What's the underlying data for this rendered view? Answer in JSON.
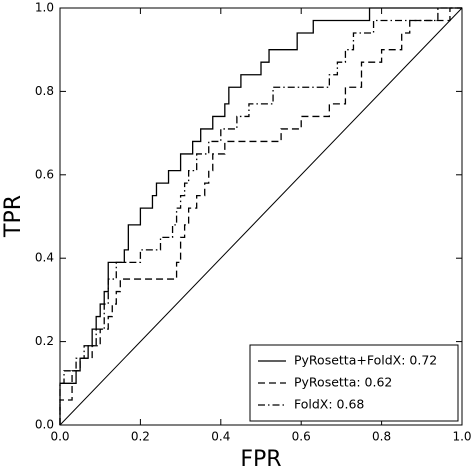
{
  "chart_data": {
    "type": "line",
    "xlabel": "FPR",
    "ylabel": "TPR",
    "xlim": [
      0,
      1
    ],
    "ylim": [
      0,
      1
    ],
    "xticks": [
      {
        "value": 0,
        "label": "0.0"
      },
      0.2,
      0.4,
      0.6,
      0.8,
      {
        "value": 1,
        "label": "1.0"
      }
    ],
    "yticks": [
      {
        "value": 0,
        "label": "0.0"
      },
      0.2,
      0.4,
      0.6,
      0.8,
      {
        "value": 1,
        "label": "1.0"
      }
    ],
    "diagonal": true,
    "grid": false,
    "legend": "lower right",
    "series": [
      {
        "name": "PyRosetta+FoldX: 0.72",
        "color": "#000000",
        "dash": "solid",
        "x": [
          0,
          0,
          0.04,
          0.04,
          0.05,
          0.05,
          0.07,
          0.07,
          0.08,
          0.08,
          0.09,
          0.09,
          0.1,
          0.1,
          0.11,
          0.11,
          0.12,
          0.12,
          0.16,
          0.16,
          0.17,
          0.17,
          0.2,
          0.2,
          0.23,
          0.23,
          0.24,
          0.24,
          0.27,
          0.27,
          0.3,
          0.3,
          0.33,
          0.33,
          0.35,
          0.35,
          0.38,
          0.38,
          0.41,
          0.41,
          0.42,
          0.42,
          0.45,
          0.45,
          0.5,
          0.5,
          0.52,
          0.52,
          0.59,
          0.59,
          0.63,
          0.63,
          0.77,
          0.77,
          1
        ],
        "values": [
          0,
          0.1,
          0.1,
          0.13,
          0.13,
          0.16,
          0.16,
          0.19,
          0.19,
          0.23,
          0.23,
          0.26,
          0.26,
          0.29,
          0.29,
          0.32,
          0.32,
          0.39,
          0.39,
          0.42,
          0.42,
          0.48,
          0.48,
          0.52,
          0.52,
          0.55,
          0.55,
          0.58,
          0.58,
          0.61,
          0.61,
          0.65,
          0.65,
          0.68,
          0.68,
          0.71,
          0.71,
          0.74,
          0.74,
          0.77,
          0.77,
          0.81,
          0.81,
          0.84,
          0.84,
          0.87,
          0.87,
          0.9,
          0.9,
          0.94,
          0.94,
          0.97,
          0.97,
          1,
          1
        ]
      },
      {
        "name": "PyRosetta: 0.62",
        "color": "#000000",
        "dash": "dashed",
        "x": [
          0,
          0,
          0.03,
          0.03,
          0.05,
          0.05,
          0.08,
          0.08,
          0.1,
          0.1,
          0.12,
          0.12,
          0.13,
          0.13,
          0.14,
          0.14,
          0.15,
          0.15,
          0.29,
          0.29,
          0.3,
          0.3,
          0.31,
          0.31,
          0.32,
          0.32,
          0.34,
          0.34,
          0.36,
          0.36,
          0.37,
          0.37,
          0.38,
          0.38,
          0.41,
          0.41,
          0.55,
          0.55,
          0.6,
          0.6,
          0.67,
          0.67,
          0.71,
          0.71,
          0.75,
          0.75,
          0.8,
          0.8,
          0.85,
          0.85,
          0.87,
          0.87,
          0.97,
          0.97,
          1
        ],
        "values": [
          0,
          0.06,
          0.06,
          0.13,
          0.13,
          0.16,
          0.16,
          0.19,
          0.19,
          0.23,
          0.23,
          0.26,
          0.26,
          0.29,
          0.29,
          0.32,
          0.32,
          0.35,
          0.35,
          0.39,
          0.39,
          0.45,
          0.45,
          0.48,
          0.48,
          0.52,
          0.52,
          0.55,
          0.55,
          0.58,
          0.58,
          0.61,
          0.61,
          0.65,
          0.65,
          0.68,
          0.68,
          0.71,
          0.71,
          0.74,
          0.74,
          0.77,
          0.77,
          0.81,
          0.81,
          0.87,
          0.87,
          0.9,
          0.9,
          0.94,
          0.94,
          0.97,
          0.97,
          1,
          1
        ]
      },
      {
        "name": "FoldX: 0.68",
        "color": "#000000",
        "dash": "dashdot",
        "x": [
          0,
          0,
          0.01,
          0.01,
          0.04,
          0.04,
          0.06,
          0.06,
          0.09,
          0.09,
          0.11,
          0.11,
          0.12,
          0.12,
          0.14,
          0.14,
          0.2,
          0.2,
          0.25,
          0.25,
          0.28,
          0.28,
          0.29,
          0.29,
          0.3,
          0.3,
          0.31,
          0.31,
          0.32,
          0.32,
          0.34,
          0.34,
          0.37,
          0.37,
          0.4,
          0.4,
          0.44,
          0.44,
          0.47,
          0.47,
          0.53,
          0.53,
          0.67,
          0.67,
          0.69,
          0.69,
          0.71,
          0.71,
          0.73,
          0.73,
          0.78,
          0.78,
          0.94,
          0.94,
          1
        ],
        "values": [
          0,
          0.1,
          0.1,
          0.13,
          0.13,
          0.16,
          0.16,
          0.19,
          0.19,
          0.23,
          0.23,
          0.29,
          0.29,
          0.35,
          0.35,
          0.39,
          0.39,
          0.42,
          0.42,
          0.45,
          0.45,
          0.48,
          0.48,
          0.52,
          0.52,
          0.55,
          0.55,
          0.58,
          0.58,
          0.61,
          0.61,
          0.65,
          0.65,
          0.68,
          0.68,
          0.71,
          0.71,
          0.74,
          0.74,
          0.77,
          0.77,
          0.81,
          0.81,
          0.84,
          0.84,
          0.87,
          0.87,
          0.9,
          0.9,
          0.94,
          0.94,
          0.97,
          0.97,
          1,
          1
        ]
      }
    ]
  }
}
